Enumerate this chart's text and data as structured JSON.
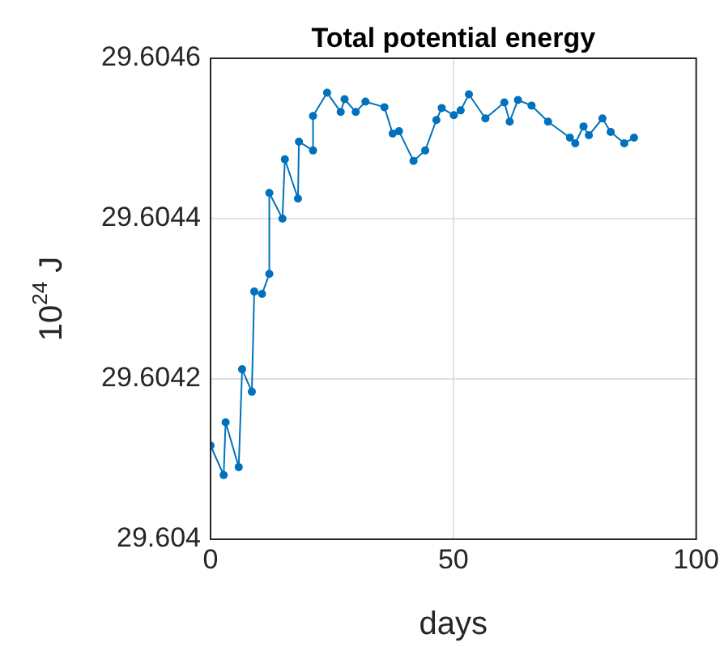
{
  "chart_data": {
    "type": "line",
    "title": "Total potential energy",
    "xlabel": "days",
    "ylabel": "10$^{24}$ J",
    "xlim": [
      0,
      100
    ],
    "xticks": [
      0,
      50,
      100
    ],
    "ylim": [
      29.604,
      29.6046
    ],
    "yticks": [
      29.604,
      29.6042,
      29.6044,
      29.6046
    ],
    "grid": true,
    "marker": "circle",
    "line_style": "solid",
    "series": [
      {
        "color": "#0072bd",
        "x": [
          0,
          2.7,
          3.1,
          5.8,
          6.5,
          8.5,
          9.0,
          10.6,
          12.1,
          12.1,
          14.8,
          15.3,
          18.0,
          18.2,
          21.1,
          21.1,
          24.0,
          26.8,
          27.6,
          29.9,
          31.9,
          35.8,
          37.5,
          38.8,
          41.8,
          44.2,
          46.5,
          47.6,
          50.1,
          51.5,
          53.2,
          56.6,
          60.5,
          61.6,
          63.3,
          66.1,
          69.5,
          74.0,
          75.1,
          76.8,
          77.9,
          80.7,
          82.4,
          85.2,
          87.2
        ],
        "values": [
          29.604117,
          29.60408,
          29.604146,
          29.60409,
          29.604212,
          29.604184,
          29.604309,
          29.604306,
          29.604331,
          29.604432,
          29.6044,
          29.604474,
          29.604425,
          29.604496,
          29.604485,
          29.604528,
          29.604557,
          29.604533,
          29.604549,
          29.604533,
          29.604546,
          29.604539,
          29.604506,
          29.604509,
          29.604472,
          29.604485,
          29.604523,
          29.604538,
          29.604529,
          29.604535,
          29.604555,
          29.604525,
          29.604545,
          29.604521,
          29.604548,
          29.604541,
          29.604521,
          29.604501,
          29.604494,
          29.604515,
          29.604504,
          29.604525,
          29.604508,
          29.604494,
          29.604501
        ]
      }
    ]
  }
}
